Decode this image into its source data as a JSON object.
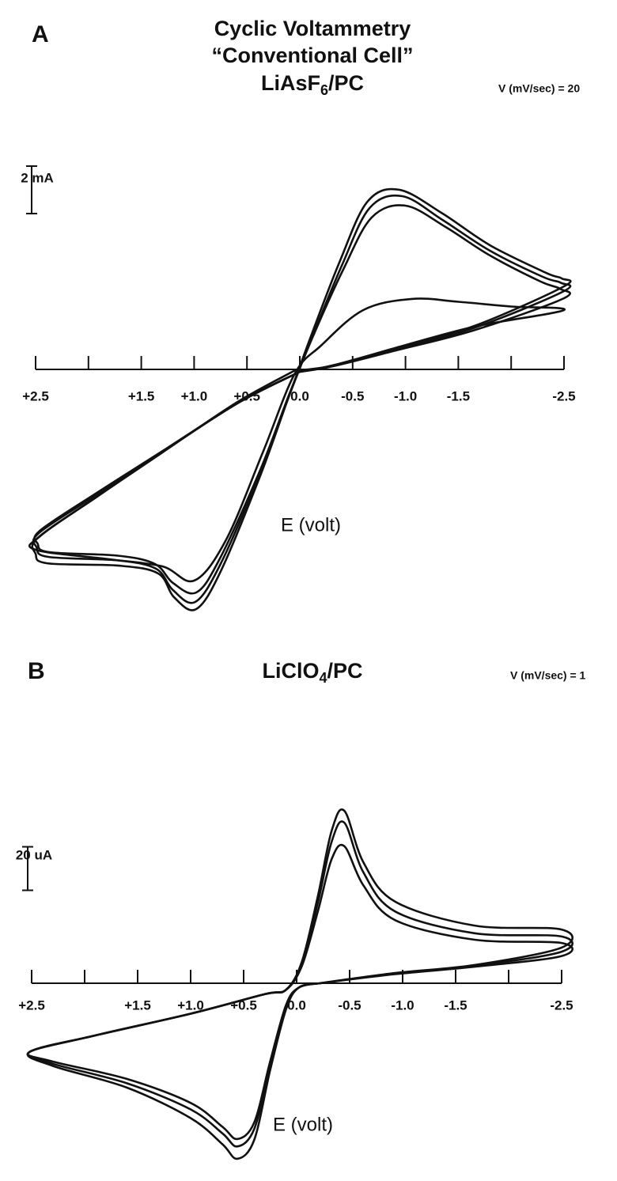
{
  "chart_data": [
    {
      "type": "line",
      "panel": "A",
      "title": [
        "Cyclic Voltammetry",
        "“Conventional Cell”"
      ],
      "formula": [
        "LiAsF",
        "6",
        "/PC"
      ],
      "annotation": "V (mV/sec) = 20",
      "x_label": "E (volt)",
      "scale_bar": {
        "value": 2,
        "label": "2 mA"
      },
      "xlim": [
        2.5,
        -2.5
      ],
      "ylim": [
        -11,
        9
      ],
      "color": "#111111",
      "xticks": [
        {
          "value": 2.5,
          "label": "+2.5"
        },
        {
          "value": 2,
          "label": null
        },
        {
          "value": 1.5,
          "label": "+1.5"
        },
        {
          "value": 1,
          "label": "+1.0"
        },
        {
          "value": 0.5,
          "label": "+0.5"
        },
        {
          "value": 0,
          "label": "0.0"
        },
        {
          "value": -0.5,
          "label": "-0.5"
        },
        {
          "value": -1,
          "label": "-1.0"
        },
        {
          "value": -1.5,
          "label": "-1.5"
        },
        {
          "value": -2,
          "label": null
        },
        {
          "value": -2.5,
          "label": "-2.5"
        }
      ],
      "series": [
        {
          "x": [
            0,
            -0.31,
            -0.91,
            -1.65,
            -2.5,
            -2.48,
            -2.33,
            -1.8,
            -1.35,
            -0.94,
            -0.64,
            -0.38,
            -0.12,
            0.1,
            0.37,
            0.74,
            0.98,
            1.19,
            1.34,
            1.71,
            2.39,
            2.5,
            2.48,
            1.94,
            1.34,
            0.59,
            0
          ],
          "values": [
            -0.1,
            0.17,
            0.9,
            1.83,
            3.5,
            3.83,
            4.07,
            5.23,
            6.57,
            7.57,
            7.07,
            4.57,
            1.57,
            -1.1,
            -4.43,
            -8.43,
            -10.1,
            -9.6,
            -8.6,
            -8.27,
            -8.17,
            -7.77,
            -7.1,
            -5.43,
            -3.6,
            -1.43,
            -0.1
          ]
        },
        {
          "x": [
            0,
            -0.31,
            -0.91,
            -1.65,
            -2.5,
            -2.47,
            -2.3,
            -1.8,
            -1.35,
            -0.97,
            -0.66,
            -0.4,
            -0.13,
            0.1,
            0.38,
            0.75,
            0.99,
            1.2,
            1.36,
            1.72,
            2.38,
            2.49,
            2.47,
            1.93,
            1.33,
            0.58,
            0
          ],
          "values": [
            -0.1,
            0.15,
            0.85,
            1.75,
            3.3,
            3.65,
            3.9,
            5.0,
            6.3,
            7.3,
            6.8,
            4.4,
            1.5,
            -1.1,
            -4.4,
            -8.2,
            -9.8,
            -9.3,
            -8.4,
            -8.05,
            -7.9,
            -7.5,
            -6.9,
            -5.3,
            -3.55,
            -1.4,
            -0.1
          ]
        },
        {
          "x": [
            0,
            -0.31,
            -0.91,
            -1.65,
            -2.5,
            -2.46,
            -2.28,
            -1.8,
            -1.38,
            -1.0,
            -0.68,
            -0.41,
            -0.13,
            0.1,
            0.38,
            0.76,
            0.98,
            1.2,
            1.37,
            1.72,
            2.37,
            2.48,
            2.46,
            1.92,
            1.32,
            0.58,
            0
          ],
          "values": [
            -0.1,
            0.13,
            0.8,
            1.65,
            3.0,
            3.4,
            3.7,
            4.8,
            6.0,
            6.9,
            6.4,
            4.2,
            1.45,
            -1.05,
            -4.3,
            -8.0,
            -9.4,
            -9.0,
            -8.2,
            -7.85,
            -7.7,
            -7.35,
            -6.8,
            -5.2,
            -3.5,
            -1.4,
            -0.1
          ]
        },
        {
          "x": [
            0.05,
            -0.3,
            -0.9,
            -1.65,
            -2.5,
            -2.0,
            -1.5,
            -1.06,
            -0.6,
            -0.2,
            0.05,
            0.35,
            0.7,
            1.0,
            1.3,
            1.8,
            2.5,
            2.45,
            1.9,
            1.3,
            0.6,
            0.05
          ],
          "values": [
            -0.05,
            0.15,
            0.9,
            1.8,
            2.5,
            2.65,
            2.85,
            2.97,
            2.5,
            1.0,
            -0.2,
            -3.5,
            -7.2,
            -8.9,
            -8.3,
            -8.0,
            -7.6,
            -7.0,
            -5.3,
            -3.5,
            -1.4,
            -0.05
          ]
        }
      ]
    },
    {
      "type": "line",
      "panel": "B",
      "formula": [
        "LiClO",
        "4",
        "/PC"
      ],
      "annotation": "V (mV/sec) = 1",
      "x_label": "E (volt)",
      "scale_bar": {
        "value": 20,
        "label": "20 uA"
      },
      "xlim": [
        2.5,
        -2.5
      ],
      "ylim": [
        -88,
        90
      ],
      "color": "#111111",
      "xticks": [
        {
          "value": 2.5,
          "label": "+2.5"
        },
        {
          "value": 2,
          "label": null
        },
        {
          "value": 1.5,
          "label": "+1.5"
        },
        {
          "value": 1,
          "label": "+1.0"
        },
        {
          "value": 0.5,
          "label": "+0.5"
        },
        {
          "value": 0,
          "label": "0.0"
        },
        {
          "value": -0.5,
          "label": "-0.5"
        },
        {
          "value": -1,
          "label": "-1.0"
        },
        {
          "value": -1.5,
          "label": "-1.5"
        },
        {
          "value": -2,
          "label": null
        },
        {
          "value": -2.5,
          "label": "-2.5"
        }
      ],
      "series": [
        {
          "x": [
            -0.22,
            -0.93,
            -1.68,
            -2.5,
            -2.5,
            -1.68,
            -0.93,
            -0.63,
            -0.45,
            -0.33,
            -0.2,
            -0.05,
            0.1,
            0.3,
            1.0,
            1.9,
            2.52,
            2.3,
            1.6,
            1.0,
            0.7,
            0.56,
            0.4,
            0.25,
            0.1,
            -0.02,
            -0.22
          ],
          "values": [
            0,
            4.7,
            8.4,
            16.4,
            24.7,
            26.5,
            37.5,
            55.6,
            79.3,
            70,
            40,
            10,
            -3,
            -5,
            -14,
            -24,
            -31.6,
            -38,
            -48,
            -62,
            -74,
            -80.7,
            -72,
            -40,
            -12,
            -2,
            0
          ]
        },
        {
          "x": [
            -0.22,
            -0.93,
            -1.68,
            -2.5,
            -2.5,
            -1.68,
            -0.93,
            -0.63,
            -0.45,
            -0.33,
            -0.2,
            -0.05,
            0.1,
            0.3,
            1.0,
            1.9,
            2.52,
            2.3,
            1.6,
            1.0,
            0.7,
            0.56,
            0.4,
            0.25,
            0.1,
            -0.02,
            -0.22
          ],
          "values": [
            0,
            4.5,
            8.0,
            14.5,
            21.5,
            23,
            33,
            51,
            73.8,
            65,
            37,
            9,
            -3,
            -5,
            -14,
            -24,
            -31.6,
            -37,
            -46,
            -58,
            -69,
            -75,
            -67,
            -38,
            -11,
            -2,
            0
          ]
        },
        {
          "x": [
            -0.22,
            -0.93,
            -1.68,
            -2.5,
            -2.5,
            -1.68,
            -0.93,
            -0.63,
            -0.45,
            -0.33,
            -0.2,
            -0.05,
            0.1,
            0.3,
            1.0,
            1.9,
            2.52,
            2.3,
            1.6,
            1.0,
            0.7,
            0.56,
            0.4,
            0.25,
            0.1,
            -0.02,
            -0.22
          ],
          "values": [
            0,
            4.2,
            7.6,
            12.5,
            18.5,
            20,
            29,
            45,
            63,
            57,
            33,
            8,
            -3,
            -5,
            -14,
            -24,
            -31.6,
            -36,
            -44,
            -55,
            -66,
            -71.6,
            -64,
            -36,
            -10,
            -2,
            0
          ]
        }
      ]
    }
  ]
}
